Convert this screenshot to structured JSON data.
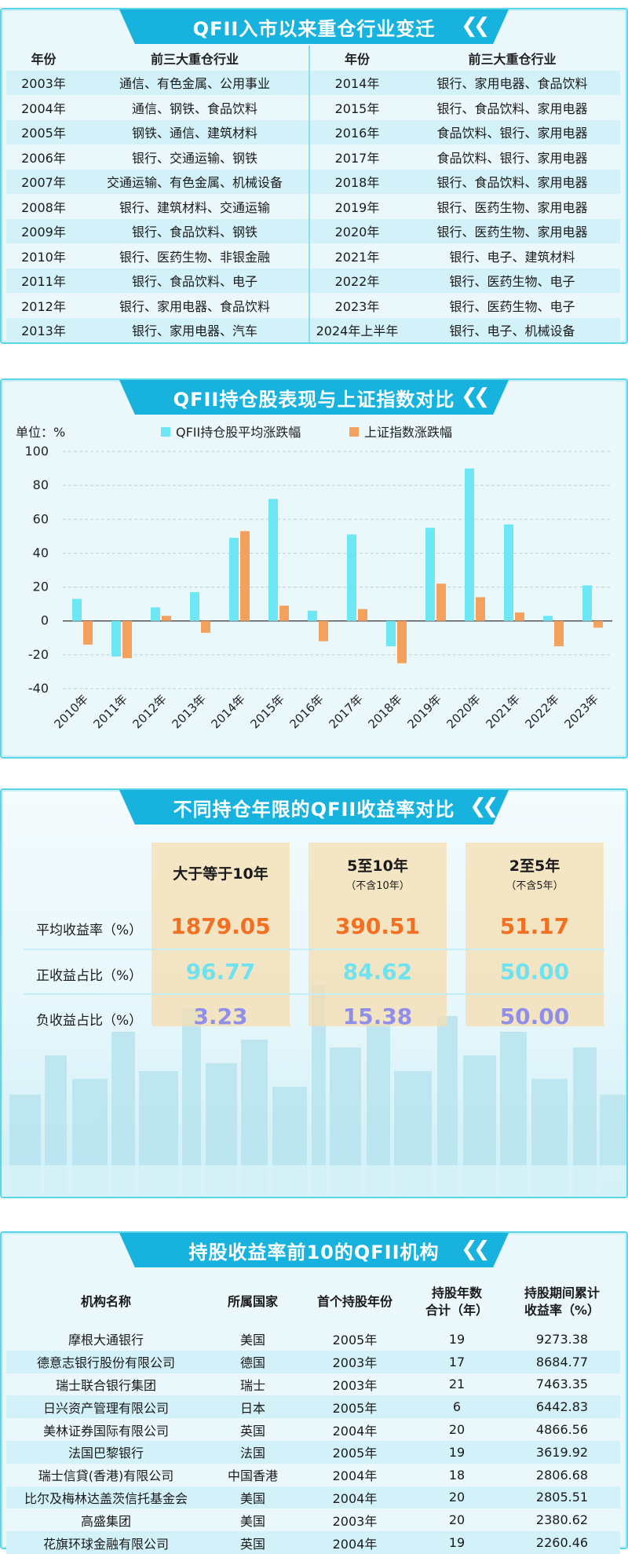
{
  "colors": {
    "accent": "#17b3de",
    "qfii_series": "#6ee7f5",
    "index_series": "#f5a15e",
    "avg_return_text": "#f36f21",
    "positive_ratio_text": "#6ee3ef",
    "negative_ratio_text": "#8f8ee8"
  },
  "sector_table": {
    "title": "QFII入市以来重仓行业变迁",
    "headers": {
      "year_left": "年份",
      "sectors_left": "前三大重仓行业",
      "year_right": "年份",
      "sectors_right": "前三大重仓行业"
    },
    "rows": [
      {
        "y1": "2003年",
        "s1": "通信、有色金属、公用事业",
        "y2": "2014年",
        "s2": "银行、家用电器、食品饮料"
      },
      {
        "y1": "2004年",
        "s1": "通信、钢铁、食品饮料",
        "y2": "2015年",
        "s2": "银行、食品饮料、家用电器"
      },
      {
        "y1": "2005年",
        "s1": "钢铁、通信、建筑材料",
        "y2": "2016年",
        "s2": "食品饮料、银行、家用电器"
      },
      {
        "y1": "2006年",
        "s1": "银行、交通运输、钢铁",
        "y2": "2017年",
        "s2": "食品饮料、银行、家用电器"
      },
      {
        "y1": "2007年",
        "s1": "交通运输、有色金属、机械设备",
        "y2": "2018年",
        "s2": "银行、食品饮料、家用电器"
      },
      {
        "y1": "2008年",
        "s1": "银行、建筑材料、交通运输",
        "y2": "2019年",
        "s2": "银行、医药生物、家用电器"
      },
      {
        "y1": "2009年",
        "s1": "银行、食品饮料、钢铁",
        "y2": "2020年",
        "s2": "银行、医药生物、家用电器"
      },
      {
        "y1": "2010年",
        "s1": "银行、医药生物、非银金融",
        "y2": "2021年",
        "s2": "银行、电子、建筑材料"
      },
      {
        "y1": "2011年",
        "s1": "银行、食品饮料、电子",
        "y2": "2022年",
        "s2": "银行、医药生物、电子"
      },
      {
        "y1": "2012年",
        "s1": "银行、家用电器、食品饮料",
        "y2": "2023年",
        "s2": "银行、医药生物、电子"
      },
      {
        "y1": "2013年",
        "s1": "银行、家用电器、汽车",
        "y2": "2024年上半年",
        "s2": "银行、电子、机械设备"
      }
    ]
  },
  "chart_data": {
    "type": "bar",
    "title": "QFII持仓股表现与上证指数对比",
    "unit_label": "单位：%",
    "categories": [
      "2010年",
      "2011年",
      "2012年",
      "2013年",
      "2014年",
      "2015年",
      "2016年",
      "2017年",
      "2018年",
      "2019年",
      "2020年",
      "2021年",
      "2022年",
      "2023年"
    ],
    "series": [
      {
        "name": "QFII持仓股平均涨跌幅",
        "values": [
          13,
          -21,
          8,
          17,
          49,
          72,
          6,
          51,
          -15,
          55,
          90,
          57,
          3,
          21
        ]
      },
      {
        "name": "上证指数涨跌幅",
        "values": [
          -14,
          -22,
          3,
          -7,
          53,
          9,
          -12,
          7,
          -25,
          22,
          14,
          5,
          -15,
          -4
        ]
      }
    ],
    "ylim": [
      -40,
      100
    ],
    "yticks": [
      "100",
      "80",
      "60",
      "40",
      "20",
      "0",
      "-20",
      "-40"
    ],
    "grid": "horizontal-dashed",
    "legend_position": "top"
  },
  "holding_period": {
    "title": "不同持仓年限的QFII收益率对比",
    "columns": [
      {
        "label": "大于等于10年",
        "note": ""
      },
      {
        "label": "5至10年",
        "note": "（不含10年）"
      },
      {
        "label": "2至5年",
        "note": "（不含5年）"
      }
    ],
    "row_labels": [
      "平均收益率（%）",
      "正收益占比（%）",
      "负收益占比（%）"
    ],
    "values": [
      [
        "1879.05",
        "390.51",
        "51.17"
      ],
      [
        "96.77",
        "84.62",
        "50.00"
      ],
      [
        "3.23",
        "15.38",
        "50.00"
      ]
    ]
  },
  "top10": {
    "title": "持股收益率前10的QFII机构",
    "headers": {
      "name": "机构名称",
      "country": "所属国家",
      "first_year": "首个持股年份",
      "years_l1": "持股年数",
      "years_l2": "合计（年）",
      "ret_l1": "持股期间累计",
      "ret_l2": "收益率（%）"
    },
    "rows": [
      {
        "name": "摩根大通银行",
        "country": "美国",
        "first": "2005年",
        "years": "19",
        "ret": "9273.38"
      },
      {
        "name": "德意志银行股份有限公司",
        "country": "德国",
        "first": "2003年",
        "years": "17",
        "ret": "8684.77"
      },
      {
        "name": "瑞士联合银行集团",
        "country": "瑞士",
        "first": "2003年",
        "years": "21",
        "ret": "7463.35"
      },
      {
        "name": "日兴资产管理有限公司",
        "country": "日本",
        "first": "2005年",
        "years": "6",
        "ret": "6442.83"
      },
      {
        "name": "美林证券国际有限公司",
        "country": "英国",
        "first": "2004年",
        "years": "20",
        "ret": "4866.56"
      },
      {
        "name": "法国巴黎银行",
        "country": "法国",
        "first": "2005年",
        "years": "19",
        "ret": "3619.92"
      },
      {
        "name": "瑞士信貸(香港)有限公司",
        "country": "中国香港",
        "first": "2004年",
        "years": "18",
        "ret": "2806.68"
      },
      {
        "name": "比尔及梅林达盖茨信托基金会",
        "country": "美国",
        "first": "2004年",
        "years": "20",
        "ret": "2805.51"
      },
      {
        "name": "高盛集团",
        "country": "美国",
        "first": "2003年",
        "years": "20",
        "ret": "2380.62"
      },
      {
        "name": "花旗环球金融有限公司",
        "country": "英国",
        "first": "2004年",
        "years": "19",
        "ret": "2260.46"
      }
    ]
  }
}
